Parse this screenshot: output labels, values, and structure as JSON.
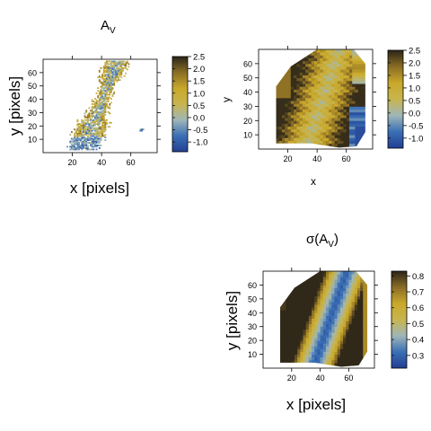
{
  "colormap": {
    "stops": [
      "#233f93",
      "#3a6fb5",
      "#9fb6b8",
      "#c8b54f",
      "#c9a82a",
      "#8a6d25",
      "#2a2418"
    ]
  },
  "chart_data": [
    {
      "type": "heatmap",
      "title": "A",
      "title_subscript": "V",
      "xlabel": "x [pixels]",
      "ylabel": "y [pixels]",
      "xlim": [
        0,
        78
      ],
      "ylim": [
        0,
        70
      ],
      "x_ticks": [
        20,
        40,
        60
      ],
      "y_ticks": [
        10,
        20,
        30,
        40,
        50,
        60
      ],
      "colorbar_range": [
        -1.4,
        2.5
      ],
      "colorbar_ticks": [
        "-1.0",
        "-0.5",
        "0.0",
        "0.5",
        "1.0",
        "1.5",
        "2.0",
        "2.5"
      ],
      "colorbar_tick_values": [
        -1.0,
        -0.5,
        0.0,
        0.5,
        1.0,
        1.5,
        2.0,
        2.5
      ]
    },
    {
      "type": "heatmap",
      "title": "",
      "xlabel": "x",
      "ylabel": "y",
      "xlim": [
        0,
        78
      ],
      "ylim": [
        0,
        70
      ],
      "x_ticks": [
        20,
        40,
        60
      ],
      "y_ticks": [
        10,
        20,
        30,
        40,
        50,
        60
      ],
      "colorbar_range": [
        -1.4,
        2.5
      ],
      "colorbar_ticks": [
        "-1.0",
        "-0.5",
        "0.0",
        "0.5",
        "1.0",
        "1.5",
        "2.0",
        "2.5"
      ],
      "colorbar_tick_values": [
        -1.0,
        -0.5,
        0.0,
        0.5,
        1.0,
        1.5,
        2.0,
        2.5
      ]
    },
    {
      "type": "heatmap",
      "title": "σ(A",
      "title_subscript": "V",
      "title_suffix": ")",
      "xlabel": "x [pixels]",
      "ylabel": "y [pixels]",
      "xlim": [
        0,
        78
      ],
      "ylim": [
        0,
        70
      ],
      "x_ticks": [
        20,
        40,
        60
      ],
      "y_ticks": [
        10,
        20,
        30,
        40,
        50,
        60
      ],
      "colorbar_range": [
        0.22,
        0.83
      ],
      "colorbar_ticks": [
        "0.3",
        "0.4",
        "0.5",
        "0.6",
        "0.7",
        "0.8"
      ],
      "colorbar_tick_values": [
        0.3,
        0.4,
        0.5,
        0.6,
        0.7,
        0.8
      ]
    }
  ]
}
